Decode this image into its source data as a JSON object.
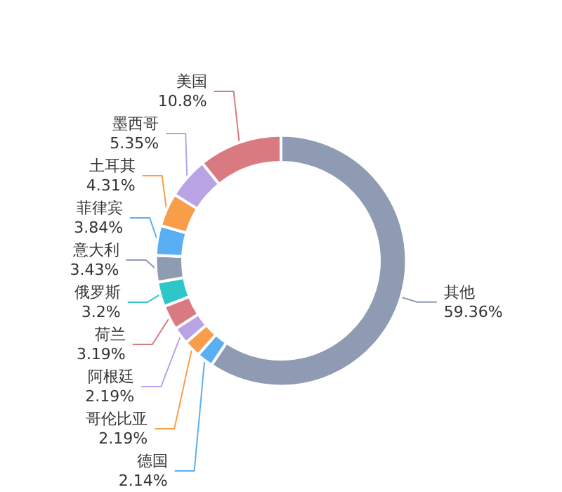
{
  "chart_data": {
    "type": "donut",
    "categories": [
      "其他",
      "德国",
      "哥伦比亚",
      "阿根廷",
      "荷兰",
      "俄罗斯",
      "意大利",
      "菲律宾",
      "土耳其",
      "墨西哥",
      "美国"
    ],
    "values": [
      59.36,
      2.14,
      2.19,
      2.19,
      3.19,
      3.2,
      3.43,
      3.84,
      4.31,
      5.35,
      10.8
    ],
    "value_labels": [
      "59.36%",
      "2.14%",
      "2.19%",
      "2.19%",
      "3.19%",
      "3.2%",
      "3.43%",
      "3.84%",
      "4.31%",
      "5.35%",
      "10.8%"
    ],
    "colors": [
      "#8f9bb3",
      "#5aaef3",
      "#f89e4b",
      "#b9a3e3",
      "#d97a80",
      "#2ec7c9",
      "#8f9bb3",
      "#5aaef3",
      "#f89e4b",
      "#b9a3e3",
      "#d97a80"
    ],
    "legend": false
  }
}
